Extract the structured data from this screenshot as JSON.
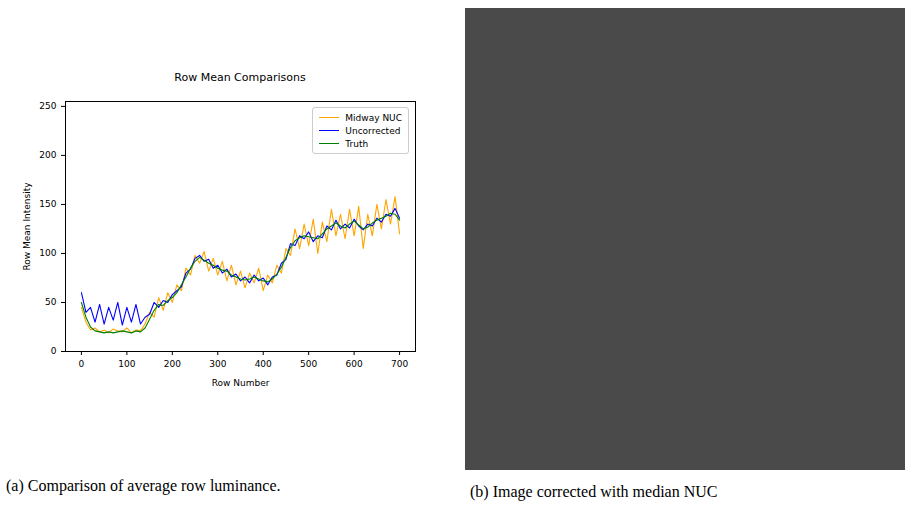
{
  "chart_data": {
    "type": "line",
    "title": "Row Mean Comparisons",
    "x_label": "Row Number",
    "y_label": "Row Mean Intensity",
    "x": [
      0,
      10,
      20,
      30,
      40,
      50,
      60,
      70,
      80,
      90,
      100,
      110,
      120,
      130,
      140,
      150,
      160,
      170,
      180,
      190,
      200,
      210,
      220,
      230,
      240,
      250,
      260,
      270,
      280,
      290,
      300,
      310,
      320,
      330,
      340,
      350,
      360,
      370,
      380,
      390,
      400,
      410,
      420,
      430,
      440,
      450,
      460,
      470,
      480,
      490,
      500,
      510,
      520,
      530,
      540,
      550,
      560,
      570,
      580,
      590,
      600,
      610,
      620,
      630,
      640,
      650,
      660,
      670,
      680,
      690,
      700
    ],
    "series": [
      {
        "name": "Midway NUC",
        "color": "#ffa500",
        "values": [
          45,
          30,
          22,
          24,
          20,
          22,
          19,
          23,
          21,
          20,
          24,
          19,
          22,
          21,
          28,
          40,
          35,
          55,
          42,
          60,
          50,
          68,
          62,
          85,
          78,
          98,
          90,
          102,
          82,
          95,
          78,
          92,
          72,
          88,
          68,
          82,
          65,
          80,
          70,
          85,
          62,
          78,
          70,
          88,
          80,
          105,
          98,
          125,
          105,
          130,
          108,
          135,
          100,
          132,
          112,
          145,
          118,
          140,
          115,
          145,
          118,
          148,
          105,
          140,
          118,
          150,
          125,
          155,
          130,
          158,
          120
        ]
      },
      {
        "name": "Uncorrected",
        "color": "#0000ff",
        "values": [
          60,
          40,
          45,
          30,
          48,
          28,
          45,
          32,
          50,
          27,
          45,
          30,
          48,
          28,
          35,
          38,
          50,
          45,
          52,
          50,
          58,
          62,
          66,
          80,
          84,
          95,
          98,
          92,
          94,
          85,
          88,
          80,
          84,
          76,
          79,
          72,
          76,
          70,
          78,
          72,
          75,
          68,
          76,
          78,
          90,
          94,
          110,
          108,
          118,
          115,
          122,
          112,
          118,
          116,
          128,
          124,
          134,
          125,
          130,
          126,
          135,
          128,
          124,
          130,
          128,
          136,
          132,
          140,
          138,
          146,
          136
        ]
      },
      {
        "name": "Truth",
        "color": "#008000",
        "values": [
          50,
          35,
          25,
          21,
          20,
          19,
          20,
          19,
          20,
          21,
          20,
          19,
          21,
          20,
          24,
          33,
          42,
          48,
          47,
          52,
          55,
          60,
          68,
          76,
          85,
          92,
          96,
          93,
          90,
          88,
          85,
          83,
          82,
          78,
          76,
          74,
          73,
          74,
          76,
          74,
          72,
          71,
          74,
          79,
          86,
          96,
          106,
          113,
          116,
          118,
          117,
          116,
          115,
          120,
          125,
          128,
          131,
          128,
          126,
          130,
          133,
          129,
          125,
          127,
          131,
          134,
          136,
          138,
          141,
          140,
          134
        ]
      }
    ],
    "xlim": [
      -35,
      735
    ],
    "xticks": [
      0,
      100,
      200,
      300,
      400,
      500,
      600,
      700
    ],
    "ylim": [
      0,
      255
    ],
    "yticks": [
      0,
      50,
      100,
      150,
      200,
      250
    ],
    "grid": false,
    "legend": "upper right"
  },
  "captions": {
    "a": "(a) Comparison of average row luminance.",
    "b": "(b) Image corrected with median NUC"
  }
}
